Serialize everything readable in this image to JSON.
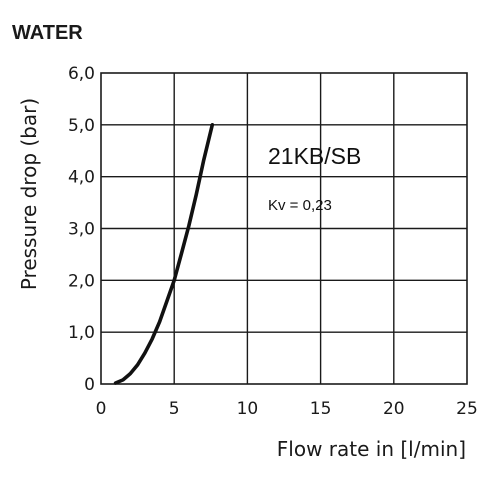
{
  "chart_data": {
    "type": "line",
    "title": "WATER",
    "xlabel": "Flow rate in [l/min]",
    "ylabel": "Pressure drop (bar)",
    "xlim": [
      0,
      25
    ],
    "ylim": [
      0,
      6
    ],
    "x_ticks": [
      "0",
      "5",
      "10",
      "15",
      "20",
      "25"
    ],
    "y_ticks": [
      "0",
      "1,0",
      "2,0",
      "3,0",
      "4,0",
      "5,0",
      "6,0"
    ],
    "grid": true,
    "annotations": [
      "21KB/SB",
      "Kv = 0,23"
    ],
    "series": [
      {
        "x": [
          1.0,
          1.5,
          2.0,
          2.5,
          3.0,
          3.5,
          4.0,
          4.5,
          5.0,
          5.5,
          6.0,
          6.5,
          7.0,
          7.6
        ],
        "values": [
          0.02,
          0.08,
          0.2,
          0.37,
          0.6,
          0.87,
          1.2,
          1.6,
          2.0,
          2.52,
          3.05,
          3.65,
          4.3,
          5.0
        ]
      }
    ]
  }
}
